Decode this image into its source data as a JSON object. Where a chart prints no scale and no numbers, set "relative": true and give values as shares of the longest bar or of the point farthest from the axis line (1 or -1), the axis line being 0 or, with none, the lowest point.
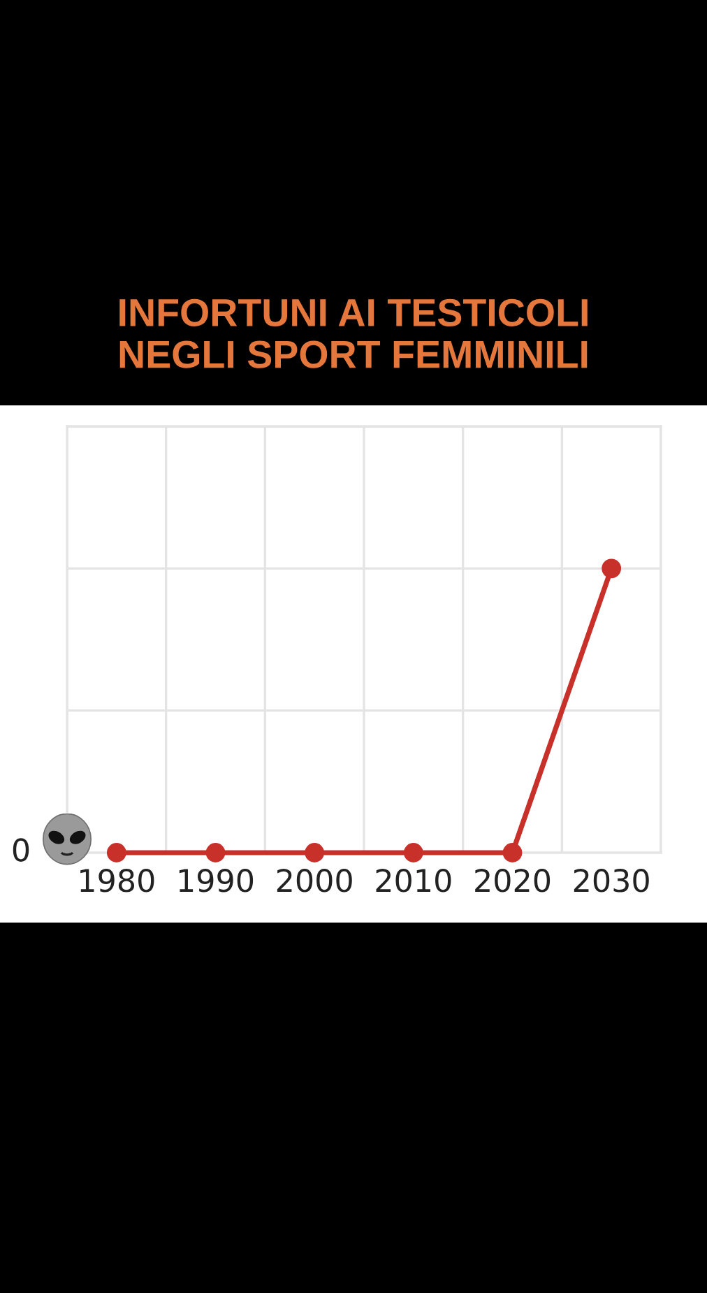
{
  "chart_data": {
    "type": "line",
    "title": "INFORTUNI AI TESTICOLI\nNEGLI SPORT FEMMINILI",
    "categories": [
      "1980",
      "1990",
      "2000",
      "2010",
      "2020",
      "2030"
    ],
    "values": [
      0,
      0,
      0,
      0,
      0,
      1
    ],
    "color": "#c8302a",
    "relative": true,
    "marker": "circle",
    "line_style": "solid",
    "grid": true,
    "annotations": [
      "0"
    ]
  }
}
